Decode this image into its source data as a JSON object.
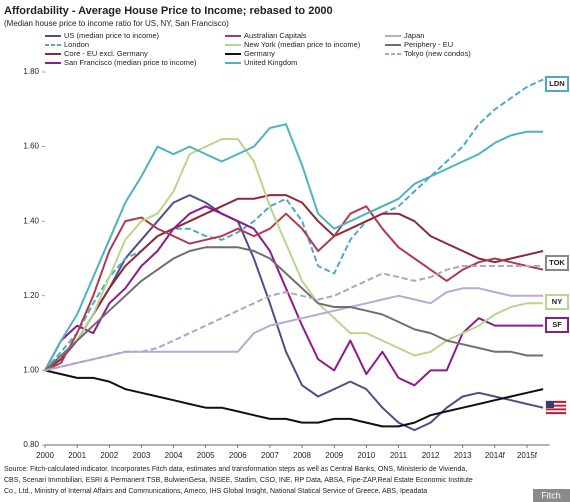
{
  "chart_data": {
    "type": "line",
    "title": "Affordability - Average House Price to Income; rebased to 2000",
    "subtitle": "(Median house price to income ratio for US, NY, San Francisco)",
    "x": [
      2000,
      2000.5,
      2001,
      2001.5,
      2002,
      2002.5,
      2003,
      2003.5,
      2004,
      2004.5,
      2005,
      2005.5,
      2006,
      2006.5,
      2007,
      2007.5,
      2008,
      2008.5,
      2009,
      2009.5,
      2010,
      2010.5,
      2011,
      2011.5,
      2012,
      2012.5,
      2013,
      2013.5,
      2014,
      2014.5,
      2015,
      2015.5
    ],
    "xlim": [
      2000,
      2015.7
    ],
    "xticks": [
      2000,
      2001,
      2002,
      2003,
      2004,
      2005,
      2006,
      2007,
      2008,
      2009,
      2010,
      2011,
      2012,
      2013,
      {
        "value": 2014,
        "label": "2014f"
      },
      {
        "value": 2015,
        "label": "2015f"
      }
    ],
    "ylim": [
      0.8,
      1.8
    ],
    "yticks": [
      {
        "value": 0.8,
        "label": "0.80"
      },
      {
        "value": 1.0,
        "label": "1.00"
      },
      {
        "value": 1.2,
        "label": "1.20"
      },
      {
        "value": 1.4,
        "label": "1.40"
      },
      {
        "value": 1.6,
        "label": "1.60"
      },
      {
        "value": 1.8,
        "label": "1.80"
      }
    ],
    "grid": false,
    "series": [
      {
        "name": "US (median price to income)",
        "color": "#4b4f8a",
        "dashed": false,
        "values": [
          1.0,
          1.03,
          1.08,
          1.15,
          1.22,
          1.3,
          1.35,
          1.4,
          1.45,
          1.47,
          1.45,
          1.42,
          1.4,
          1.3,
          1.18,
          1.05,
          0.96,
          0.93,
          0.95,
          0.97,
          0.95,
          0.9,
          0.86,
          0.84,
          0.86,
          0.9,
          0.93,
          0.94,
          0.93,
          0.92,
          0.91,
          0.9
        ]
      },
      {
        "name": "London",
        "color": "#4fa8cc",
        "dashed": true,
        "values": [
          1.0,
          1.05,
          1.1,
          1.18,
          1.25,
          1.3,
          1.32,
          1.36,
          1.38,
          1.38,
          1.36,
          1.35,
          1.37,
          1.4,
          1.44,
          1.46,
          1.4,
          1.28,
          1.26,
          1.35,
          1.4,
          1.42,
          1.44,
          1.48,
          1.52,
          1.56,
          1.6,
          1.66,
          1.7,
          1.73,
          1.76,
          1.78
        ]
      },
      {
        "name": "Core - EU excl. Germany",
        "color": "#8b2a3a",
        "dashed": false,
        "values": [
          1.0,
          1.03,
          1.08,
          1.15,
          1.22,
          1.28,
          1.32,
          1.36,
          1.38,
          1.4,
          1.42,
          1.44,
          1.46,
          1.46,
          1.47,
          1.47,
          1.45,
          1.4,
          1.36,
          1.38,
          1.4,
          1.42,
          1.42,
          1.4,
          1.36,
          1.34,
          1.32,
          1.3,
          1.29,
          1.3,
          1.31,
          1.32
        ]
      },
      {
        "name": "San Francisco (median price to income)",
        "color": "#8e1b8e",
        "dashed": false,
        "values": [
          1.0,
          1.08,
          1.12,
          1.1,
          1.18,
          1.22,
          1.28,
          1.32,
          1.38,
          1.42,
          1.44,
          1.42,
          1.4,
          1.38,
          1.32,
          1.22,
          1.12,
          1.03,
          1.0,
          1.08,
          0.99,
          1.05,
          0.98,
          0.96,
          1.0,
          1.0,
          1.1,
          1.14,
          1.12,
          1.12,
          1.12,
          1.12
        ]
      },
      {
        "name": "Australian Capitals",
        "color": "#b03a4f",
        "dashed": false,
        "values": [
          1.0,
          1.02,
          1.1,
          1.2,
          1.32,
          1.4,
          1.41,
          1.38,
          1.36,
          1.34,
          1.35,
          1.36,
          1.38,
          1.36,
          1.38,
          1.42,
          1.38,
          1.32,
          1.36,
          1.42,
          1.44,
          1.38,
          1.33,
          1.3,
          1.27,
          1.24,
          1.27,
          1.29,
          1.3,
          1.29,
          1.28,
          1.27
        ]
      },
      {
        "name": "New York (median price to income)",
        "color": "#b9d68c",
        "dashed": false,
        "values": [
          1.0,
          1.04,
          1.08,
          1.15,
          1.25,
          1.35,
          1.4,
          1.42,
          1.48,
          1.58,
          1.6,
          1.62,
          1.62,
          1.56,
          1.44,
          1.34,
          1.24,
          1.18,
          1.14,
          1.1,
          1.1,
          1.08,
          1.06,
          1.04,
          1.05,
          1.08,
          1.1,
          1.12,
          1.15,
          1.17,
          1.18,
          1.18
        ]
      },
      {
        "name": "Germany",
        "color": "#111111",
        "dashed": false,
        "values": [
          1.0,
          0.99,
          0.98,
          0.98,
          0.97,
          0.95,
          0.94,
          0.93,
          0.92,
          0.91,
          0.9,
          0.9,
          0.89,
          0.88,
          0.87,
          0.87,
          0.86,
          0.86,
          0.87,
          0.87,
          0.86,
          0.85,
          0.85,
          0.86,
          0.88,
          0.89,
          0.9,
          0.91,
          0.92,
          0.93,
          0.94,
          0.95
        ]
      },
      {
        "name": "United Kingdom",
        "color": "#4db3c2",
        "dashed": false,
        "values": [
          1.0,
          1.08,
          1.15,
          1.25,
          1.35,
          1.45,
          1.52,
          1.6,
          1.58,
          1.6,
          1.58,
          1.56,
          1.58,
          1.6,
          1.65,
          1.66,
          1.55,
          1.42,
          1.38,
          1.4,
          1.42,
          1.44,
          1.46,
          1.5,
          1.52,
          1.54,
          1.56,
          1.58,
          1.61,
          1.63,
          1.64,
          1.64
        ]
      },
      {
        "name": "Japan",
        "color": "#b9a9d3",
        "dashed": false,
        "values": [
          1.0,
          1.01,
          1.02,
          1.03,
          1.04,
          1.05,
          1.05,
          1.05,
          1.05,
          1.05,
          1.05,
          1.05,
          1.05,
          1.1,
          1.12,
          1.13,
          1.14,
          1.15,
          1.16,
          1.17,
          1.18,
          1.19,
          1.2,
          1.19,
          1.18,
          1.21,
          1.22,
          1.22,
          1.21,
          1.2,
          1.2,
          1.2
        ]
      },
      {
        "name": "Periphery - EU",
        "color": "#6f6f6f",
        "dashed": false,
        "values": [
          1.0,
          1.04,
          1.08,
          1.12,
          1.16,
          1.2,
          1.24,
          1.27,
          1.3,
          1.32,
          1.33,
          1.33,
          1.33,
          1.32,
          1.3,
          1.26,
          1.22,
          1.18,
          1.17,
          1.17,
          1.16,
          1.15,
          1.13,
          1.11,
          1.1,
          1.08,
          1.07,
          1.06,
          1.05,
          1.05,
          1.04,
          1.04
        ]
      },
      {
        "name": "Tokyo (new condos)",
        "color": "#b3a3c3",
        "dashed": true,
        "values": [
          1.0,
          1.01,
          1.02,
          1.03,
          1.04,
          1.05,
          1.05,
          1.06,
          1.08,
          1.1,
          1.12,
          1.14,
          1.16,
          1.18,
          1.2,
          1.21,
          1.2,
          1.19,
          1.2,
          1.22,
          1.24,
          1.26,
          1.25,
          1.24,
          1.25,
          1.27,
          1.28,
          1.28,
          1.28,
          1.28,
          1.28,
          1.28
        ]
      }
    ],
    "annotations": [
      "LDN",
      "TOK",
      "NY",
      "SF"
    ],
    "source": [
      "Source: Fitch-calculated indicator. Incorporates Fitch data, estimates and transformation steps as well as Central Banks, ONS, Ministerio de Vivienda,",
      "CBS, Scenari Immobiliari, ESRI & Permanent TSB, BulwienGesa, INSEE, Stadim, CSO, INE, RP Data, ABSA, Fipe-ZAP,Real Estate Economic Institute",
      "Co., Ltd., Ministry of Internal Affairs and Communications, Ameco, IHS Global Insight, National Statical Service of Greece, ABS, Ipeadata"
    ],
    "brand": "Fitch"
  }
}
